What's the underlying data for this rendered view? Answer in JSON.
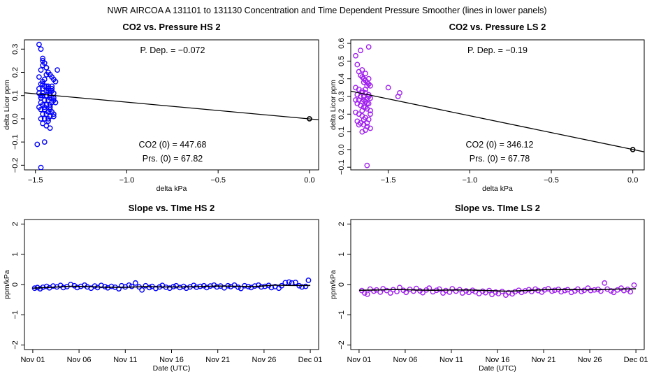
{
  "figure_title": "NWR   AIRCOA A   131101 to 131130   Concentration and Time Dependent Pressure Smoother (lines in lower panels)",
  "colors": {
    "hs": "#0000ff",
    "ls": "#a020f0",
    "line": "#000000"
  },
  "chart_data": [
    {
      "id": "co2-vs-pressure-hs",
      "type": "scatter",
      "title": "CO2 vs. Pressure HS 2",
      "xlabel": "delta kPa",
      "ylabel": "delta Licor ppm",
      "xlim": [
        -1.56,
        0.05
      ],
      "ylim": [
        -0.22,
        0.34
      ],
      "xticks": [
        -1.5,
        -1.0,
        -0.5,
        0.0
      ],
      "xtick_labels": [
        "−1.5",
        "−1.0",
        "−0.5",
        "0.0"
      ],
      "yticks": [
        -0.2,
        -0.1,
        0.0,
        0.1,
        0.2,
        0.3
      ],
      "ytick_labels": [
        "−0.2",
        "−0.1",
        "0.0",
        "0.1",
        "0.2",
        "0.3"
      ],
      "annotations": {
        "p_dep": "P. Dep. =  −0.072",
        "co2_0": "CO2 (0) =  447.68",
        "prs_0": "Prs. (0) =  67.82"
      },
      "series_color": "#0000ff",
      "fit_line": {
        "x": [
          -1.56,
          0.05
        ],
        "y": [
          0.112,
          -0.004
        ]
      },
      "anchor_point": {
        "x": 0.0,
        "y": 0.0
      },
      "points": {
        "x": [
          -1.48,
          -1.47,
          -1.46,
          -1.45,
          -1.44,
          -1.43,
          -1.42,
          -1.41,
          -1.4,
          -1.39,
          -1.47,
          -1.45,
          -1.43,
          -1.41,
          -1.46,
          -1.44,
          -1.42,
          -1.4,
          -1.48,
          -1.46,
          -1.44,
          -1.42,
          -1.47,
          -1.45,
          -1.43,
          -1.41,
          -1.39,
          -1.46,
          -1.44,
          -1.42,
          -1.48,
          -1.47,
          -1.45,
          -1.43,
          -1.41,
          -1.46,
          -1.44,
          -1.42,
          -1.4,
          -1.47,
          -1.45,
          -1.43,
          -1.46,
          -1.44,
          -1.42,
          -1.48,
          -1.46,
          -1.44,
          -1.42,
          -1.4,
          -1.47,
          -1.45,
          -1.43,
          -1.41,
          -1.46,
          -1.44,
          -1.42,
          -1.47,
          -1.45,
          -1.43,
          -1.46,
          -1.44,
          -1.42,
          -1.4,
          -1.48,
          -1.47,
          -1.45,
          -1.43,
          -1.41,
          -1.46,
          -1.38,
          -1.42,
          -1.49,
          -1.47,
          -1.45,
          -1.43,
          -1.46,
          -1.44,
          -1.41,
          -1.4
        ],
        "y": [
          0.32,
          0.3,
          0.26,
          0.24,
          0.22,
          0.2,
          0.19,
          0.18,
          0.17,
          0.16,
          0.15,
          0.14,
          0.14,
          0.13,
          0.13,
          0.12,
          0.12,
          0.11,
          0.11,
          0.1,
          0.1,
          0.09,
          0.09,
          0.08,
          0.08,
          0.07,
          0.07,
          0.06,
          0.06,
          0.05,
          0.05,
          0.04,
          0.04,
          0.03,
          0.03,
          0.02,
          0.02,
          0.01,
          0.01,
          0.0,
          0.0,
          -0.01,
          -0.02,
          -0.03,
          -0.04,
          0.18,
          0.15,
          0.12,
          0.1,
          0.08,
          0.21,
          0.17,
          0.13,
          0.09,
          0.23,
          0.19,
          0.11,
          0.07,
          0.05,
          0.03,
          0.16,
          0.14,
          0.06,
          0.02,
          0.13,
          0.1,
          0.08,
          0.12,
          0.14,
          0.11,
          0.21,
          0.04,
          -0.11,
          -0.21,
          -0.1,
          0.0,
          0.25,
          0.22,
          0.12,
          0.09
        ]
      }
    },
    {
      "id": "co2-vs-pressure-ls",
      "type": "scatter",
      "title": "CO2 vs. Pressure LS 2",
      "xlabel": "delta kPa",
      "ylabel": "delta Licor ppm",
      "xlim": [
        -1.73,
        0.07
      ],
      "ylim": [
        -0.115,
        0.62
      ],
      "xticks": [
        -1.5,
        -1.0,
        -0.5,
        0.0
      ],
      "xtick_labels": [
        "−1.5",
        "−1.0",
        "−0.5",
        "0.0"
      ],
      "yticks": [
        -0.1,
        0.0,
        0.1,
        0.2,
        0.3,
        0.4,
        0.5,
        0.6
      ],
      "ytick_labels": [
        "−0.1",
        "0.0",
        "0.1",
        "0.2",
        "0.3",
        "0.4",
        "0.5",
        "0.6"
      ],
      "annotations": {
        "p_dep": "P. Dep. =  −0.19",
        "co2_0": "CO2 (0) =  346.12",
        "prs_0": "Prs. (0) =  67.78"
      },
      "series_color": "#a020f0",
      "fit_line": {
        "x": [
          -1.73,
          0.07
        ],
        "y": [
          0.33,
          -0.013
        ]
      },
      "anchor_point": {
        "x": 0.0,
        "y": 0.0
      },
      "points": {
        "x": [
          -1.7,
          -1.69,
          -1.68,
          -1.67,
          -1.66,
          -1.65,
          -1.64,
          -1.63,
          -1.62,
          -1.61,
          -1.7,
          -1.68,
          -1.66,
          -1.64,
          -1.62,
          -1.69,
          -1.67,
          -1.65,
          -1.63,
          -1.61,
          -1.7,
          -1.68,
          -1.66,
          -1.64,
          -1.62,
          -1.69,
          -1.67,
          -1.65,
          -1.63,
          -1.61,
          -1.7,
          -1.68,
          -1.66,
          -1.64,
          -1.62,
          -1.69,
          -1.67,
          -1.65,
          -1.63,
          -1.61,
          -1.66,
          -1.64,
          -1.62,
          -1.65,
          -1.63,
          -1.64,
          -1.66,
          -1.62,
          -1.65,
          -1.63,
          -1.64,
          -1.66,
          -1.61,
          -1.65,
          -1.63,
          -1.5,
          -1.44,
          -1.43,
          -1.67,
          -1.62,
          -1.68,
          -1.63,
          -1.66,
          -1.64
        ],
        "y": [
          0.53,
          0.48,
          0.44,
          0.42,
          0.41,
          0.4,
          0.39,
          0.38,
          0.37,
          0.36,
          0.35,
          0.34,
          0.33,
          0.32,
          0.31,
          0.31,
          0.3,
          0.3,
          0.29,
          0.29,
          0.28,
          0.28,
          0.27,
          0.27,
          0.26,
          0.26,
          0.25,
          0.24,
          0.23,
          0.22,
          0.21,
          0.2,
          0.19,
          0.18,
          0.17,
          0.16,
          0.15,
          0.14,
          0.13,
          0.12,
          0.45,
          0.43,
          0.4,
          0.38,
          0.36,
          0.34,
          0.32,
          0.3,
          0.28,
          0.26,
          0.24,
          0.22,
          0.2,
          0.17,
          0.15,
          0.35,
          0.3,
          0.32,
          0.56,
          0.58,
          0.14,
          -0.09,
          0.1,
          0.11
        ]
      }
    },
    {
      "id": "slope-vs-time-hs",
      "type": "scatter",
      "title": "Slope vs. TIme HS 2",
      "xlabel": "Date (UTC)",
      "ylabel": "ppm/kPa",
      "xlim": [
        -0.9,
        30.9
      ],
      "ylim": [
        -2.15,
        2.15
      ],
      "xticks": [
        0,
        5,
        10,
        15,
        20,
        25,
        30
      ],
      "xtick_labels": [
        "Nov 01",
        "Nov 06",
        "Nov 11",
        "Nov 16",
        "Nov 21",
        "Nov 26",
        "Dec 01"
      ],
      "yticks": [
        -2,
        -1,
        0,
        1,
        2
      ],
      "ytick_labels": [
        "−2",
        "−1",
        "0",
        "1",
        "2"
      ],
      "series_color": "#0000ff",
      "smoother": {
        "x": [
          0,
          2,
          4,
          6,
          8,
          10,
          12,
          14,
          16,
          18,
          20,
          22,
          24,
          26,
          28,
          30
        ],
        "y": [
          -0.12,
          -0.09,
          -0.06,
          -0.07,
          -0.09,
          -0.09,
          -0.07,
          -0.08,
          -0.08,
          -0.07,
          -0.05,
          -0.06,
          -0.07,
          -0.02,
          -0.03,
          -0.03
        ]
      },
      "points": {
        "x": [
          0.2,
          0.5,
          0.8,
          1.1,
          1.5,
          1.8,
          2.2,
          2.6,
          3.0,
          3.3,
          3.7,
          4.1,
          4.5,
          4.8,
          5.2,
          5.6,
          5.9,
          6.3,
          6.7,
          7.0,
          7.4,
          7.8,
          8.1,
          8.5,
          8.9,
          9.3,
          9.6,
          10.0,
          10.4,
          10.7,
          11.1,
          11.5,
          11.8,
          12.2,
          12.6,
          12.9,
          13.3,
          13.7,
          14.0,
          14.4,
          14.8,
          15.2,
          15.5,
          15.9,
          16.3,
          16.6,
          17.0,
          17.4,
          17.7,
          18.1,
          18.5,
          18.8,
          19.2,
          19.6,
          19.9,
          20.3,
          20.7,
          21.1,
          21.4,
          21.8,
          22.2,
          22.5,
          22.9,
          23.3,
          23.6,
          24.0,
          24.4,
          24.7,
          25.1,
          25.5,
          25.8,
          26.2,
          26.6,
          26.9,
          27.3,
          27.7,
          28.0,
          28.4,
          28.8,
          29.1,
          29.5,
          29.8
        ],
        "y": [
          -0.12,
          -0.1,
          -0.14,
          -0.09,
          -0.06,
          -0.11,
          -0.05,
          -0.08,
          -0.03,
          -0.1,
          -0.07,
          0.0,
          -0.04,
          -0.1,
          -0.06,
          -0.02,
          -0.08,
          -0.12,
          -0.05,
          -0.1,
          -0.03,
          -0.07,
          -0.11,
          -0.06,
          -0.09,
          -0.14,
          -0.04,
          -0.08,
          -0.02,
          -0.06,
          0.05,
          -0.08,
          -0.18,
          -0.04,
          -0.1,
          -0.06,
          -0.13,
          -0.08,
          -0.03,
          -0.09,
          -0.12,
          -0.07,
          -0.04,
          -0.1,
          -0.06,
          -0.12,
          -0.08,
          -0.03,
          -0.09,
          -0.06,
          -0.04,
          -0.1,
          -0.05,
          -0.02,
          -0.08,
          -0.05,
          -0.11,
          -0.04,
          -0.07,
          -0.02,
          -0.09,
          -0.13,
          -0.04,
          -0.07,
          -0.1,
          -0.05,
          -0.02,
          -0.08,
          -0.06,
          -0.03,
          -0.1,
          -0.07,
          -0.12,
          -0.04,
          0.06,
          0.08,
          0.05,
          0.07,
          -0.04,
          -0.08,
          -0.06,
          0.14
        ]
      }
    },
    {
      "id": "slope-vs-time-ls",
      "type": "scatter",
      "title": "Slope vs. TIme LS 2",
      "xlabel": "Date (UTC)",
      "ylabel": "ppm/kPa",
      "xlim": [
        -0.9,
        30.9
      ],
      "ylim": [
        -2.15,
        2.15
      ],
      "xticks": [
        0,
        5,
        10,
        15,
        20,
        25,
        30
      ],
      "xtick_labels": [
        "Nov 01",
        "Nov 06",
        "Nov 11",
        "Nov 16",
        "Nov 21",
        "Nov 26",
        "Dec 01"
      ],
      "yticks": [
        -2,
        -1,
        0,
        1,
        2
      ],
      "ytick_labels": [
        "−2",
        "−1",
        "0",
        "1",
        "2"
      ],
      "series_color": "#a020f0",
      "smoother": {
        "x": [
          0,
          2,
          4,
          6,
          8,
          10,
          12,
          14,
          16,
          18,
          20,
          22,
          24,
          26,
          28,
          30
        ],
        "y": [
          -0.19,
          -0.18,
          -0.16,
          -0.18,
          -0.19,
          -0.18,
          -0.18,
          -0.2,
          -0.22,
          -0.2,
          -0.17,
          -0.16,
          -0.17,
          -0.17,
          -0.15,
          -0.14
        ]
      },
      "points": {
        "x": [
          0.3,
          0.6,
          0.9,
          1.2,
          1.6,
          1.9,
          2.3,
          2.6,
          3.0,
          3.4,
          3.7,
          4.1,
          4.4,
          4.8,
          5.1,
          5.5,
          5.9,
          6.2,
          6.6,
          6.9,
          7.3,
          7.6,
          8.0,
          8.4,
          8.7,
          9.1,
          9.4,
          9.8,
          10.1,
          10.5,
          10.9,
          11.2,
          11.6,
          11.9,
          12.3,
          12.6,
          13.0,
          13.4,
          13.7,
          14.1,
          14.4,
          14.8,
          15.1,
          15.5,
          15.9,
          16.2,
          16.6,
          16.9,
          17.3,
          17.6,
          18.0,
          18.4,
          18.7,
          19.1,
          19.4,
          19.8,
          20.1,
          20.5,
          20.9,
          21.2,
          21.6,
          21.9,
          22.3,
          22.6,
          23.0,
          23.4,
          23.7,
          24.1,
          24.4,
          24.8,
          25.1,
          25.5,
          25.9,
          26.2,
          26.6,
          26.9,
          27.3,
          27.6,
          28.0,
          28.4,
          28.7,
          29.1,
          29.4,
          29.8
        ],
        "y": [
          -0.2,
          -0.28,
          -0.32,
          -0.15,
          -0.22,
          -0.18,
          -0.25,
          -0.14,
          -0.2,
          -0.28,
          -0.17,
          -0.23,
          -0.1,
          -0.19,
          -0.26,
          -0.16,
          -0.22,
          -0.13,
          -0.21,
          -0.27,
          -0.18,
          -0.12,
          -0.24,
          -0.19,
          -0.15,
          -0.28,
          -0.2,
          -0.25,
          -0.14,
          -0.22,
          -0.17,
          -0.28,
          -0.21,
          -0.26,
          -0.19,
          -0.24,
          -0.3,
          -0.22,
          -0.27,
          -0.2,
          -0.33,
          -0.25,
          -0.3,
          -0.23,
          -0.35,
          -0.27,
          -0.31,
          -0.24,
          -0.19,
          -0.26,
          -0.21,
          -0.17,
          -0.23,
          -0.15,
          -0.2,
          -0.25,
          -0.18,
          -0.14,
          -0.22,
          -0.19,
          -0.16,
          -0.24,
          -0.2,
          -0.17,
          -0.26,
          -0.21,
          -0.15,
          -0.23,
          -0.19,
          -0.12,
          -0.2,
          -0.18,
          -0.16,
          -0.22,
          0.05,
          -0.15,
          -0.21,
          -0.26,
          -0.18,
          -0.12,
          -0.2,
          -0.16,
          -0.24,
          -0.02
        ]
      }
    }
  ]
}
